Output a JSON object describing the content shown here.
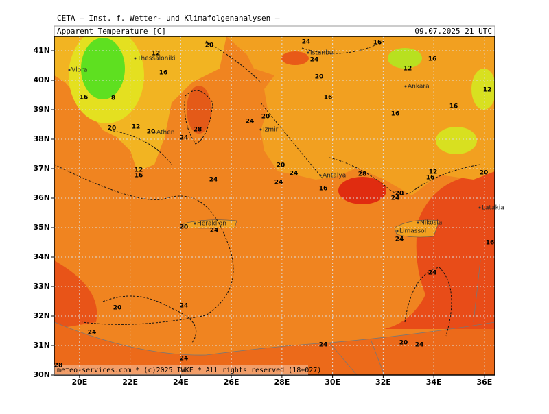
{
  "header": {
    "institute": "CETA — Inst. f. Wetter- und Klimafolgenanalysen —",
    "field": "Apparent Temperature [C]",
    "valid_time": "09.07.2025 21 UTC"
  },
  "map": {
    "lat_ticks": [
      {
        "value": 41,
        "label": "41N"
      },
      {
        "value": 40,
        "label": "40N"
      },
      {
        "value": 39,
        "label": "39N"
      },
      {
        "value": 38,
        "label": "38N"
      },
      {
        "value": 37,
        "label": "37N"
      },
      {
        "value": 36,
        "label": "36N"
      },
      {
        "value": 35,
        "label": "35N"
      },
      {
        "value": 34,
        "label": "34N"
      },
      {
        "value": 33,
        "label": "33N"
      },
      {
        "value": 32,
        "label": "32N"
      },
      {
        "value": 31,
        "label": "31N"
      },
      {
        "value": 30,
        "label": "30N"
      }
    ],
    "lon_ticks": [
      {
        "value": 20,
        "label": "20E"
      },
      {
        "value": 22,
        "label": "22E"
      },
      {
        "value": 24,
        "label": "24E"
      },
      {
        "value": 26,
        "label": "26E"
      },
      {
        "value": 28,
        "label": "28E"
      },
      {
        "value": 30,
        "label": "30E"
      },
      {
        "value": 32,
        "label": "32E"
      },
      {
        "value": 34,
        "label": "34E"
      },
      {
        "value": 36,
        "label": "36E"
      }
    ],
    "cities": [
      "Thessaloniki",
      "Vlora",
      "Istanbul",
      "Ankara",
      "Izmir",
      "Athen",
      "Antalya",
      "Heraklion",
      "Nikosia",
      "Limassol",
      "Latakia"
    ],
    "contour_labels": [
      "24",
      "24",
      "20",
      "12",
      "16",
      "16",
      "12",
      "16",
      "12",
      "16",
      "8",
      "28",
      "16",
      "20",
      "16",
      "16",
      "20",
      "24",
      "20",
      "12",
      "20",
      "24",
      "12",
      "16",
      "24",
      "20",
      "24",
      "24",
      "28",
      "16",
      "20",
      "24",
      "16",
      "12",
      "20",
      "20",
      "24",
      "24",
      "24",
      "20",
      "24",
      "24",
      "24",
      "24",
      "20",
      "24",
      "28",
      "16"
    ]
  },
  "footer": "meteo-services.com * (c)2025 IWKF * All rights reserved (18+027)"
}
